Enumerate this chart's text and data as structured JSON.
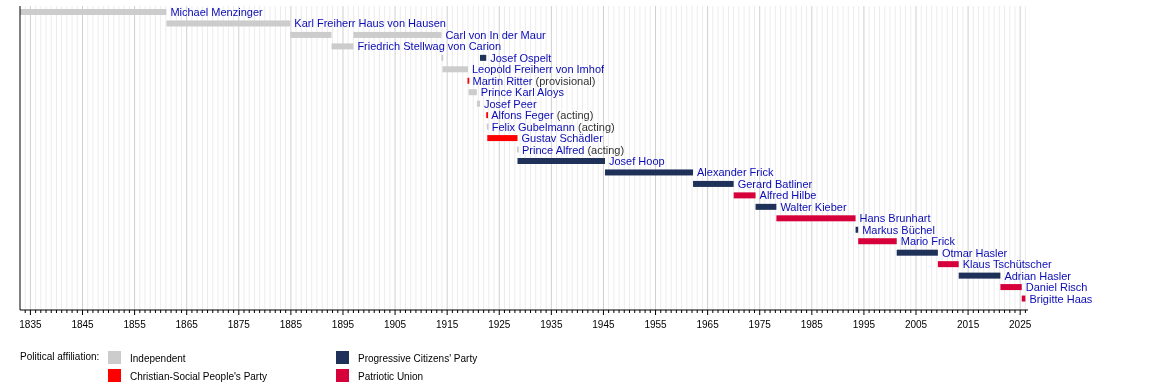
{
  "chart_data": {
    "type": "bar",
    "orientation": "horizontal",
    "legend_title": "Political affiliation:",
    "legend": "bottom left",
    "grid": "x",
    "categories": [
      "Michael Menzinger",
      "Karl Freiherr Haus von Hausen",
      "Carl von In der Maur",
      "Friedrich Stellwag von Carion",
      "Josef Ospelt",
      "Leopold Freiherr von Imhof",
      "Martin Ritter (provisional)",
      "Prince Karl Aloys",
      "Josef Peer",
      "Alfons Feger (acting)",
      "Felix Gubelmann (acting)",
      "Gustav Schädler",
      "Prince Alfred (acting)",
      "Josef Hoop",
      "Alexander Frick",
      "Gerard Batliner",
      "Alfred Hilbe",
      "Walter Kieber",
      "Hans Brunhart",
      "Markus Büchel",
      "Mario Frick",
      "Otmar Hasler",
      "Klaus Tschütscher",
      "Adrian Hasler",
      "Daniel Risch",
      "Brigitte Haas"
    ],
    "series": [
      {
        "name": "Independent",
        "color": "#cccccc",
        "base": [
          1833,
          1861.1,
          1884.9,
          1892.8,
          1913.9,
          1914.1,
          null,
          1919.1,
          1920.7,
          null,
          1922.6,
          null,
          1928.4,
          null,
          null,
          null,
          null,
          null,
          null,
          null,
          null,
          null,
          null,
          null,
          null,
          null
        ],
        "values": [
          28.1,
          23.8,
          7.9,
          4.2,
          0.2,
          4.9,
          null,
          1.6,
          0.6,
          null,
          0.2,
          null,
          0.2,
          null,
          null,
          null,
          null,
          null,
          null,
          null,
          null,
          null,
          null,
          null,
          null,
          null
        ]
      },
      {
        "name": "Christian-Social People's Party",
        "color": "#ff0000",
        "base": [
          null,
          null,
          null,
          null,
          null,
          null,
          1918.9,
          null,
          null,
          1922.5,
          null,
          1922.7,
          null,
          null,
          null,
          null,
          null,
          null,
          null,
          null,
          null,
          null,
          null,
          null,
          null,
          null
        ],
        "values": [
          null,
          null,
          null,
          null,
          null,
          null,
          0.2,
          null,
          null,
          0.2,
          null,
          5.8,
          null,
          null,
          null,
          null,
          null,
          null,
          null,
          null,
          null,
          null,
          null,
          null,
          null,
          null
        ]
      },
      {
        "name": "Progressive Citizens' Party",
        "color": "#1f3158",
        "base": [
          null,
          null,
          null,
          null,
          1921.3,
          null,
          null,
          null,
          null,
          null,
          null,
          null,
          null,
          1928.5,
          1945.3,
          1962.2,
          null,
          1974.2,
          null,
          1993.4,
          null,
          2001.3,
          null,
          2013.2,
          null,
          null
        ],
        "values": [
          null,
          null,
          null,
          null,
          1.2,
          null,
          null,
          null,
          null,
          null,
          null,
          null,
          null,
          16.8,
          16.9,
          7.8,
          null,
          4.0,
          null,
          0.5,
          null,
          7.9,
          null,
          8.0,
          null,
          null
        ]
      },
      {
        "name": "Patriotic Union",
        "color": "#d6003a",
        "base": [
          null,
          null,
          null,
          null,
          null,
          null,
          null,
          null,
          null,
          null,
          null,
          null,
          null,
          null,
          null,
          null,
          1970.0,
          null,
          1978.2,
          null,
          1993.9,
          null,
          2009.2,
          null,
          2021.2,
          2025.3
        ],
        "values": [
          null,
          null,
          null,
          null,
          null,
          null,
          null,
          null,
          null,
          null,
          null,
          null,
          null,
          null,
          null,
          null,
          4.2,
          null,
          15.2,
          null,
          7.4,
          null,
          4.0,
          null,
          4.1,
          0.7
        ]
      },
      {
        "color": "#cccccc",
        "base": [
          null,
          null,
          1897.0,
          null,
          null,
          null,
          null,
          null,
          null,
          null,
          null,
          null,
          null,
          null,
          null,
          null,
          null,
          null,
          null,
          null,
          null,
          null,
          null,
          null,
          null,
          null
        ],
        "values": [
          null,
          null,
          16.9,
          null,
          null,
          null,
          null,
          null,
          null,
          null,
          null,
          null,
          null,
          null,
          null,
          null,
          null,
          null,
          null,
          null,
          null,
          null,
          null,
          null,
          null,
          null
        ]
      }
    ],
    "xlim": [
      1833,
      2026.5
    ],
    "xticks": [
      {
        "value": 1834,
        "label": null
      },
      1835,
      {
        "value": 1836,
        "label": null
      },
      {
        "value": 1837,
        "label": null
      },
      {
        "value": 1838,
        "label": null
      },
      {
        "value": 1839,
        "label": null
      },
      {
        "value": 1840,
        "label": null
      },
      {
        "value": 1841,
        "label": null
      },
      {
        "value": 1842,
        "label": null
      },
      {
        "value": 1843,
        "label": null
      },
      {
        "value": 1844,
        "label": null
      },
      1845,
      {
        "value": 1846,
        "label": null
      },
      {
        "value": 1847,
        "label": null
      },
      {
        "value": 1848,
        "label": null
      },
      {
        "value": 1849,
        "label": null
      },
      {
        "value": 1850,
        "label": null
      },
      {
        "value": 1851,
        "label": null
      },
      {
        "value": 1852,
        "label": null
      },
      {
        "value": 1853,
        "label": null
      },
      {
        "value": 1854,
        "label": null
      },
      1855,
      {
        "value": 1856,
        "label": null
      },
      {
        "value": 1857,
        "label": null
      },
      {
        "value": 1858,
        "label": null
      },
      {
        "value": 1859,
        "label": null
      },
      {
        "value": 1860,
        "label": null
      },
      {
        "value": 1861,
        "label": null
      },
      {
        "value": 1862,
        "label": null
      },
      {
        "value": 1863,
        "label": null
      },
      {
        "value": 1864,
        "label": null
      },
      1865,
      {
        "value": 1866,
        "label": null
      },
      {
        "value": 1867,
        "label": null
      },
      {
        "value": 1868,
        "label": null
      },
      {
        "value": 1869,
        "label": null
      },
      {
        "value": 1870,
        "label": null
      },
      {
        "value": 1871,
        "label": null
      },
      {
        "value": 1872,
        "label": null
      },
      {
        "value": 1873,
        "label": null
      },
      {
        "value": 1874,
        "label": null
      },
      1875,
      {
        "value": 1876,
        "label": null
      },
      {
        "value": 1877,
        "label": null
      },
      {
        "value": 1878,
        "label": null
      },
      {
        "value": 1879,
        "label": null
      },
      {
        "value": 1880,
        "label": null
      },
      {
        "value": 1881,
        "label": null
      },
      {
        "value": 1882,
        "label": null
      },
      {
        "value": 1883,
        "label": null
      },
      {
        "value": 1884,
        "label": null
      },
      1885,
      {
        "value": 1886,
        "label": null
      },
      {
        "value": 1887,
        "label": null
      },
      {
        "value": 1888,
        "label": null
      },
      {
        "value": 1889,
        "label": null
      },
      {
        "value": 1890,
        "label": null
      },
      {
        "value": 1891,
        "label": null
      },
      {
        "value": 1892,
        "label": null
      },
      {
        "value": 1893,
        "label": null
      },
      {
        "value": 1894,
        "label": null
      },
      1895,
      {
        "value": 1896,
        "label": null
      },
      {
        "value": 1897,
        "label": null
      },
      {
        "value": 1898,
        "label": null
      },
      {
        "value": 1899,
        "label": null
      },
      {
        "value": 1900,
        "label": null
      },
      {
        "value": 1901,
        "label": null
      },
      {
        "value": 1902,
        "label": null
      },
      {
        "value": 1903,
        "label": null
      },
      {
        "value": 1904,
        "label": null
      },
      1905,
      {
        "value": 1906,
        "label": null
      },
      {
        "value": 1907,
        "label": null
      },
      {
        "value": 1908,
        "label": null
      },
      {
        "value": 1909,
        "label": null
      },
      {
        "value": 1910,
        "label": null
      },
      {
        "value": 1911,
        "label": null
      },
      {
        "value": 1912,
        "label": null
      },
      {
        "value": 1913,
        "label": null
      },
      {
        "value": 1914,
        "label": null
      },
      1915,
      {
        "value": 1916,
        "label": null
      },
      {
        "value": 1917,
        "label": null
      },
      {
        "value": 1918,
        "label": null
      },
      {
        "value": 1919,
        "label": null
      },
      {
        "value": 1920,
        "label": null
      },
      {
        "value": 1921,
        "label": null
      },
      {
        "value": 1922,
        "label": null
      },
      {
        "value": 1923,
        "label": null
      },
      {
        "value": 1924,
        "label": null
      },
      1925,
      {
        "value": 1926,
        "label": null
      },
      {
        "value": 1927,
        "label": null
      },
      {
        "value": 1928,
        "label": null
      },
      {
        "value": 1929,
        "label": null
      },
      {
        "value": 1930,
        "label": null
      },
      {
        "value": 1931,
        "label": null
      },
      {
        "value": 1932,
        "label": null
      },
      {
        "value": 1933,
        "label": null
      },
      {
        "value": 1934,
        "label": null
      },
      1935,
      {
        "value": 1936,
        "label": null
      },
      {
        "value": 1937,
        "label": null
      },
      {
        "value": 1938,
        "label": null
      },
      {
        "value": 1939,
        "label": null
      },
      {
        "value": 1940,
        "label": null
      },
      {
        "value": 1941,
        "label": null
      },
      {
        "value": 1942,
        "label": null
      },
      {
        "value": 1943,
        "label": null
      },
      {
        "value": 1944,
        "label": null
      },
      1945,
      {
        "value": 1946,
        "label": null
      },
      {
        "value": 1947,
        "label": null
      },
      {
        "value": 1948,
        "label": null
      },
      {
        "value": 1949,
        "label": null
      },
      {
        "value": 1950,
        "label": null
      },
      {
        "value": 1951,
        "label": null
      },
      {
        "value": 1952,
        "label": null
      },
      {
        "value": 1953,
        "label": null
      },
      {
        "value": 1954,
        "label": null
      },
      1955,
      {
        "value": 1956,
        "label": null
      },
      {
        "value": 1957,
        "label": null
      },
      {
        "value": 1958,
        "label": null
      },
      {
        "value": 1959,
        "label": null
      },
      {
        "value": 1960,
        "label": null
      },
      {
        "value": 1961,
        "label": null
      },
      {
        "value": 1962,
        "label": null
      },
      {
        "value": 1963,
        "label": null
      },
      {
        "value": 1964,
        "label": null
      },
      1965,
      {
        "value": 1966,
        "label": null
      },
      {
        "value": 1967,
        "label": null
      },
      {
        "value": 1968,
        "label": null
      },
      {
        "value": 1969,
        "label": null
      },
      {
        "value": 1970,
        "label": null
      },
      {
        "value": 1971,
        "label": null
      },
      {
        "value": 1972,
        "label": null
      },
      {
        "value": 1973,
        "label": null
      },
      {
        "value": 1974,
        "label": null
      },
      1975,
      {
        "value": 1976,
        "label": null
      },
      {
        "value": 1977,
        "label": null
      },
      {
        "value": 1978,
        "label": null
      },
      {
        "value": 1979,
        "label": null
      },
      {
        "value": 1980,
        "label": null
      },
      {
        "value": 1981,
        "label": null
      },
      {
        "value": 1982,
        "label": null
      },
      {
        "value": 1983,
        "label": null
      },
      {
        "value": 1984,
        "label": null
      },
      1985,
      {
        "value": 1986,
        "label": null
      },
      {
        "value": 1987,
        "label": null
      },
      {
        "value": 1988,
        "label": null
      },
      {
        "value": 1989,
        "label": null
      },
      {
        "value": 1990,
        "label": null
      },
      {
        "value": 1991,
        "label": null
      },
      {
        "value": 1992,
        "label": null
      },
      {
        "value": 1993,
        "label": null
      },
      {
        "value": 1994,
        "label": null
      },
      1995,
      {
        "value": 1996,
        "label": null
      },
      {
        "value": 1997,
        "label": null
      },
      {
        "value": 1998,
        "label": null
      },
      {
        "value": 1999,
        "label": null
      },
      {
        "value": 2000,
        "label": null
      },
      {
        "value": 2001,
        "label": null
      },
      {
        "value": 2002,
        "label": null
      },
      {
        "value": 2003,
        "label": null
      },
      {
        "value": 2004,
        "label": null
      },
      2005,
      {
        "value": 2006,
        "label": null
      },
      {
        "value": 2007,
        "label": null
      },
      {
        "value": 2008,
        "label": null
      },
      {
        "value": 2009,
        "label": null
      },
      {
        "value": 2010,
        "label": null
      },
      {
        "value": 2011,
        "label": null
      },
      {
        "value": 2012,
        "label": null
      },
      {
        "value": 2013,
        "label": null
      },
      {
        "value": 2014,
        "label": null
      },
      2015,
      {
        "value": 2016,
        "label": null
      },
      {
        "value": 2017,
        "label": null
      },
      {
        "value": 2018,
        "label": null
      },
      {
        "value": 2019,
        "label": null
      },
      {
        "value": 2020,
        "label": null
      },
      {
        "value": 2021,
        "label": null
      },
      {
        "value": 2022,
        "label": null
      },
      {
        "value": 2023,
        "label": null
      },
      {
        "value": 2024,
        "label": null
      },
      2025,
      {
        "value": 2026,
        "label": null
      }
    ]
  }
}
